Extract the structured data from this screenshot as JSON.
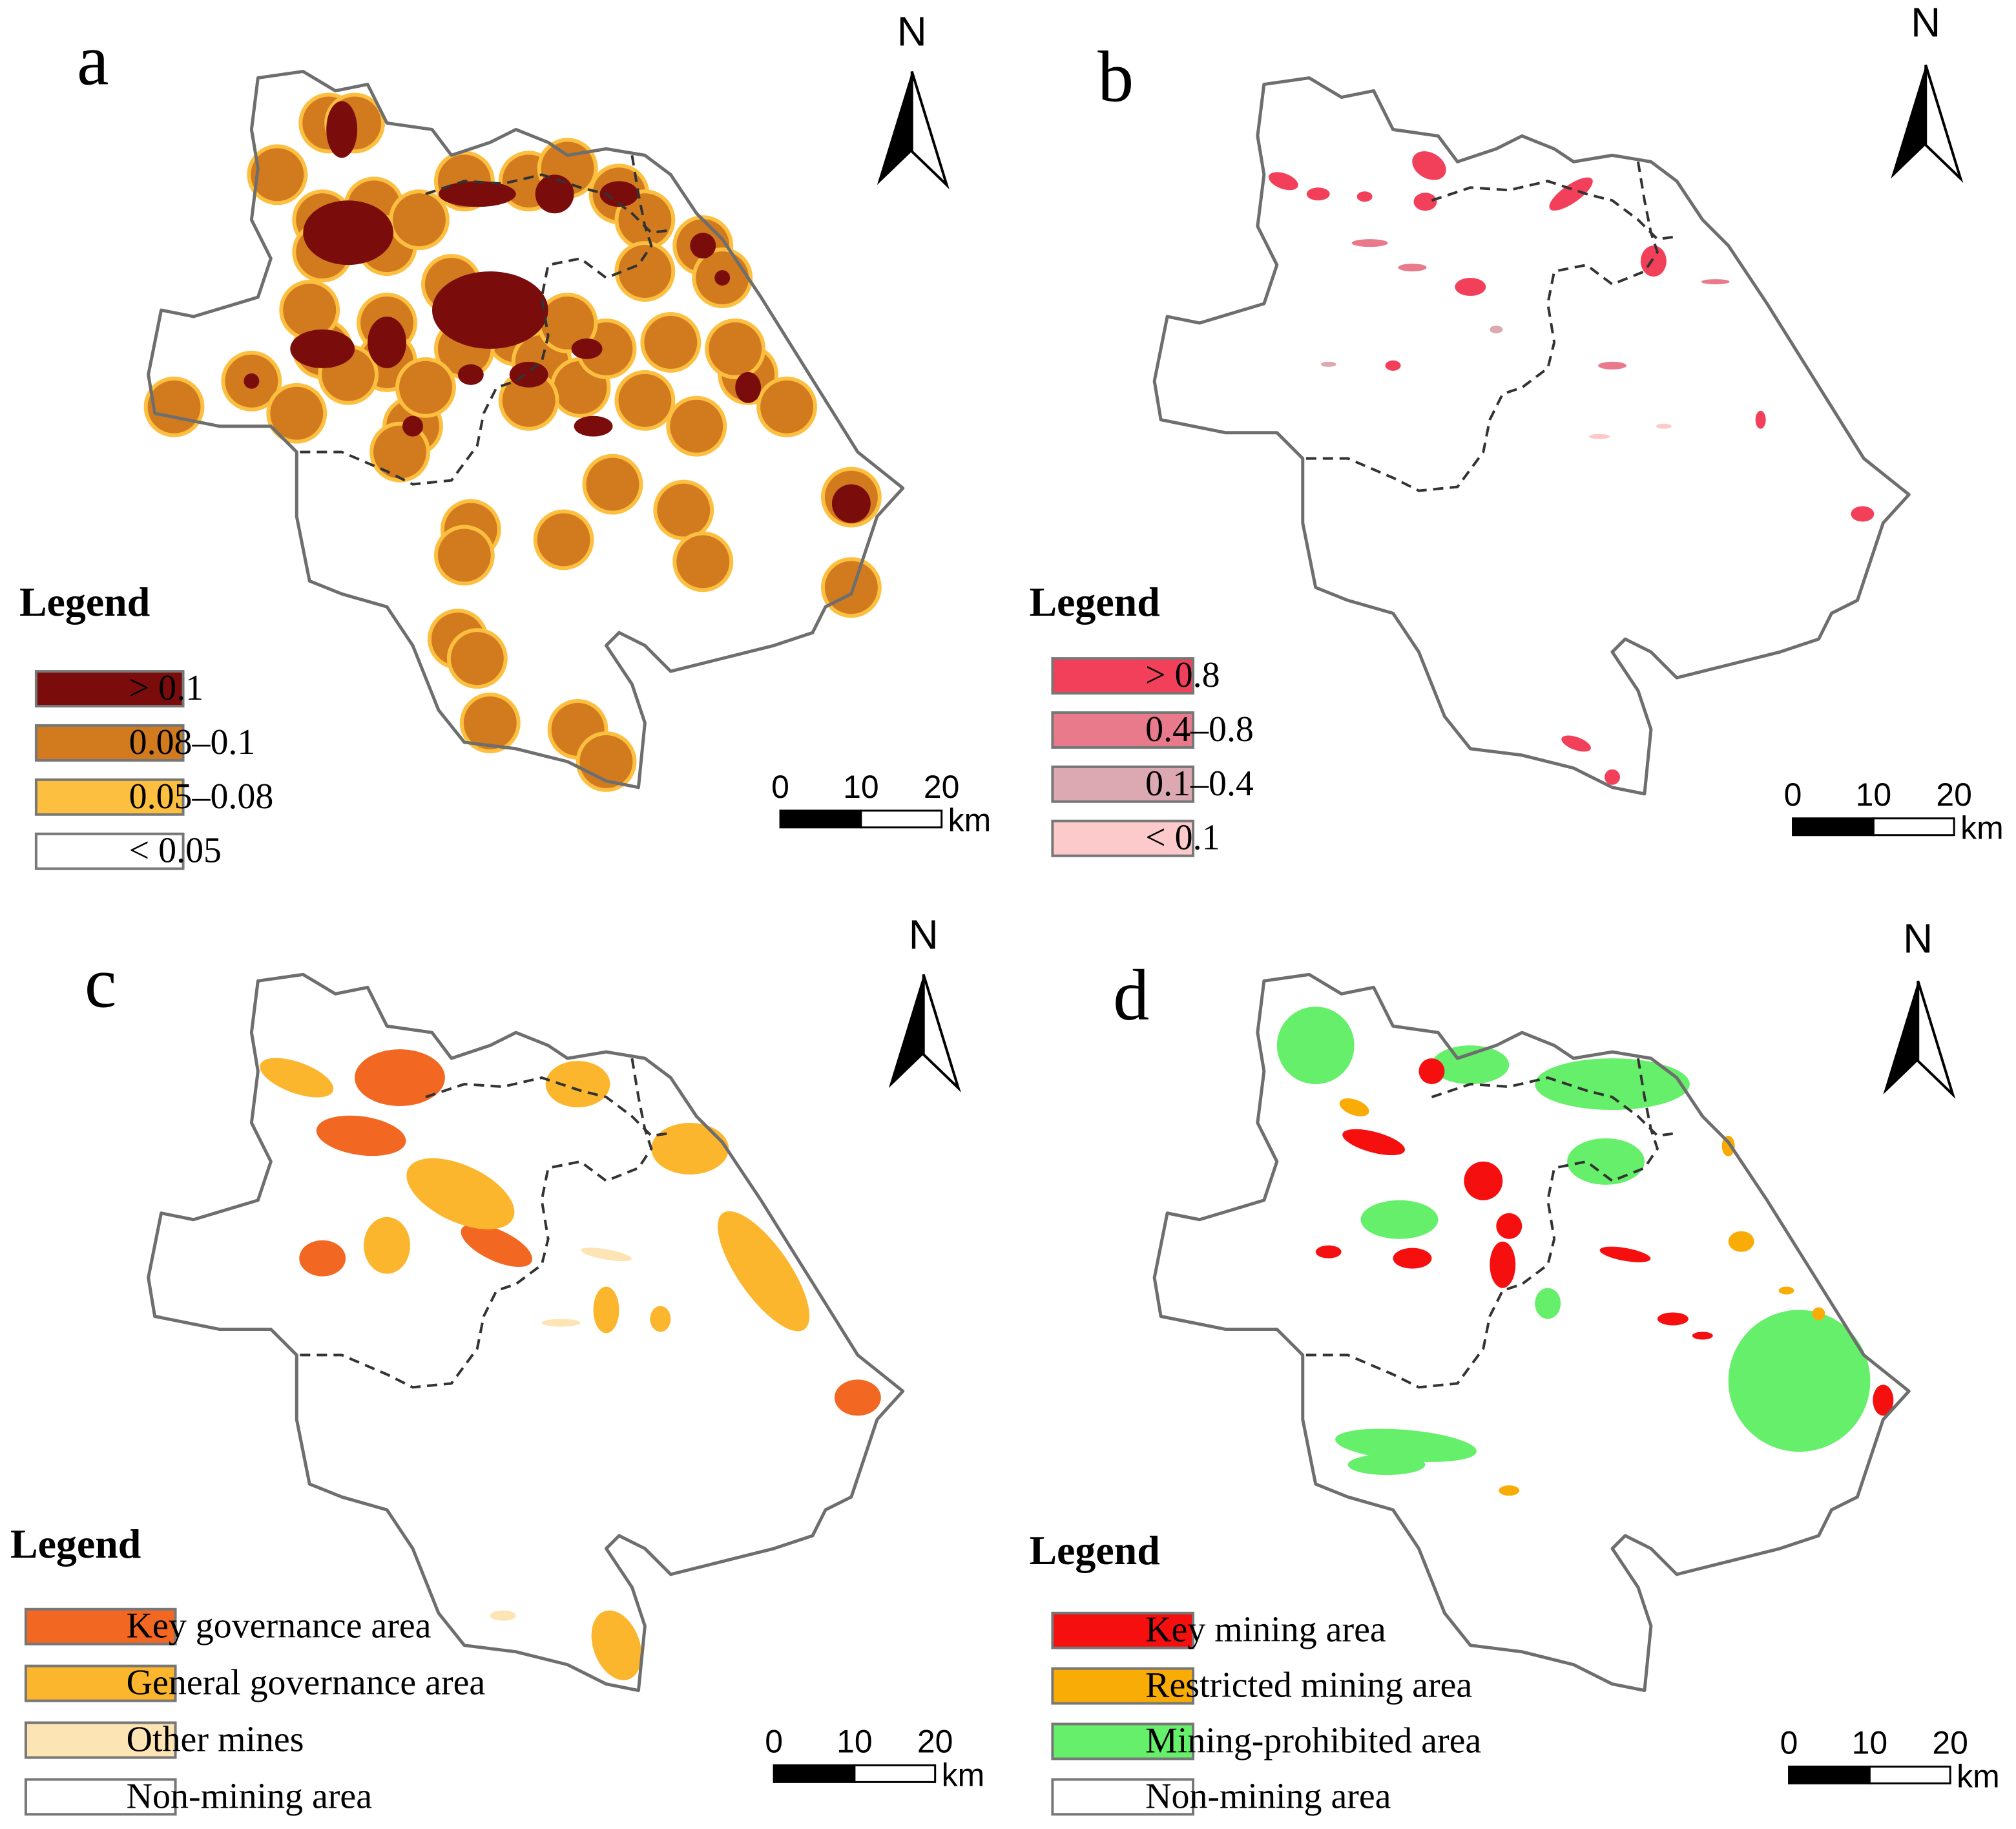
{
  "panels": [
    {
      "label": "a",
      "north": "N",
      "legend": {
        "title": "Legend",
        "items": [
          {
            "label": "> 0.1",
            "color": "#7b0c0c"
          },
          {
            "label": "0.08–0.1",
            "color": "#d27b1e"
          },
          {
            "label": "0.05–0.08",
            "color": "#fdbf40"
          },
          {
            "label": "< 0.05",
            "color": "#ffffff"
          }
        ]
      },
      "scale_bar": {
        "ticks": [
          0,
          10,
          20
        ],
        "unit": "km"
      }
    },
    {
      "label": "b",
      "north": "N",
      "legend": {
        "title": "Legend",
        "items": [
          {
            "label": "> 0.8",
            "color": "#f2405a"
          },
          {
            "label": "0.4–0.8",
            "color": "#e97a8c"
          },
          {
            "label": "0.1–0.4",
            "color": "#dca8b1"
          },
          {
            "label": "< 0.1",
            "color": "#fdcacb"
          }
        ]
      },
      "scale_bar": {
        "ticks": [
          0,
          10,
          20
        ],
        "unit": "km"
      }
    },
    {
      "label": "c",
      "north": "N",
      "legend": {
        "title": "Legend",
        "items": [
          {
            "label": "Key governance area",
            "color": "#f26722"
          },
          {
            "label": "General governance area",
            "color": "#fbb62d"
          },
          {
            "label": "Other mines",
            "color": "#fde4b4"
          },
          {
            "label": "Non-mining area",
            "color": "#ffffff"
          }
        ]
      },
      "scale_bar": {
        "ticks": [
          0,
          10,
          20
        ],
        "unit": "km"
      }
    },
    {
      "label": "d",
      "north": "N",
      "legend": {
        "title": "Legend",
        "items": [
          {
            "label": "Key mining area",
            "color": "#f50f0f"
          },
          {
            "label": "Restricted mining area",
            "color": "#f9ac06"
          },
          {
            "label": "Mining-prohibited area",
            "color": "#66ef6a"
          },
          {
            "label": "Non-mining area",
            "color": "#ffffff"
          }
        ]
      },
      "scale_bar": {
        "ticks": [
          0,
          10,
          20
        ],
        "unit": "km"
      }
    }
  ]
}
